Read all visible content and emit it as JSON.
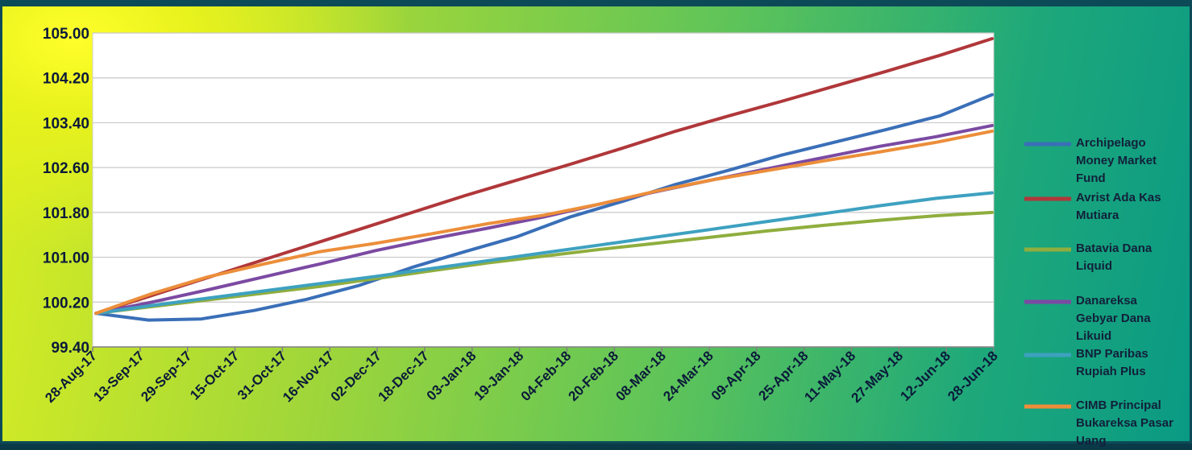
{
  "chart_data": {
    "type": "line",
    "title": "",
    "xlabel": "",
    "ylabel": "",
    "ylim": [
      99.4,
      105.0
    ],
    "yticks": [
      "99.40",
      "100.20",
      "101.00",
      "101.80",
      "102.60",
      "103.40",
      "104.20",
      "105.00"
    ],
    "x_tick_labels": [
      "28-Aug-17",
      "13-Sep-17",
      "29-Sep-17",
      "15-Oct-17",
      "31-Oct-17",
      "16-Nov-17",
      "02-Dec-17",
      "18-Dec-17",
      "03-Jan-18",
      "19-Jan-18",
      "04-Feb-18",
      "20-Feb-18",
      "08-Mar-18",
      "24-Mar-18",
      "09-Apr-18",
      "25-Apr-18",
      "11-May-18",
      "27-May-18",
      "12-Jun-18",
      "28-Jun-18"
    ],
    "grid": "horizontal",
    "legend_position": "right",
    "series": [
      {
        "name_lines": [
          "Archipelago",
          "Money Market",
          "Fund"
        ],
        "color": "#3a6fb8",
        "values": [
          100.0,
          99.88,
          99.9,
          100.05,
          100.25,
          100.5,
          100.82,
          101.1,
          101.37,
          101.72,
          102.0,
          102.3,
          102.55,
          102.82,
          103.05,
          103.28,
          103.52,
          103.9
        ]
      },
      {
        "name_lines": [
          "Avrist Ada Kas",
          "Mutiara"
        ],
        "color": "#b0373a",
        "values": [
          100.0,
          100.3,
          100.6,
          100.9,
          101.2,
          101.5,
          101.8,
          102.1,
          102.38,
          102.66,
          102.95,
          103.25,
          103.52,
          103.78,
          104.05,
          104.32,
          104.6,
          104.9
        ]
      },
      {
        "name_lines": [
          "Batavia Dana",
          "Liquid"
        ],
        "color": "#8fae3e",
        "values": [
          100.0,
          100.12,
          100.24,
          100.36,
          100.48,
          100.62,
          100.76,
          100.9,
          101.02,
          101.14,
          101.25,
          101.36,
          101.47,
          101.57,
          101.66,
          101.74,
          101.8
        ]
      },
      {
        "name_lines": [
          "Danareksa",
          "Gebyar Dana",
          "Likuid"
        ],
        "color": "#7b4aa2",
        "values": [
          100.0,
          100.2,
          100.42,
          100.65,
          100.88,
          101.12,
          101.33,
          101.52,
          101.72,
          101.95,
          102.17,
          102.38,
          102.58,
          102.78,
          102.98,
          103.15,
          103.35
        ]
      },
      {
        "name_lines": [
          "BNP Paribas",
          "Rupiah Plus"
        ],
        "color": "#3ea1c0",
        "values": [
          100.0,
          100.14,
          100.27,
          100.4,
          100.53,
          100.66,
          100.8,
          100.94,
          101.08,
          101.22,
          101.36,
          101.5,
          101.64,
          101.78,
          101.92,
          102.05,
          102.15
        ]
      },
      {
        "name_lines": [
          "CIMB Principal",
          "Bukareksa Pasar",
          "Uang"
        ],
        "color": "#ec8e3a",
        "values": [
          100.0,
          100.35,
          100.65,
          100.88,
          101.1,
          101.25,
          101.42,
          101.6,
          101.75,
          101.95,
          102.18,
          102.38,
          102.55,
          102.72,
          102.88,
          103.05,
          103.25
        ]
      }
    ]
  }
}
